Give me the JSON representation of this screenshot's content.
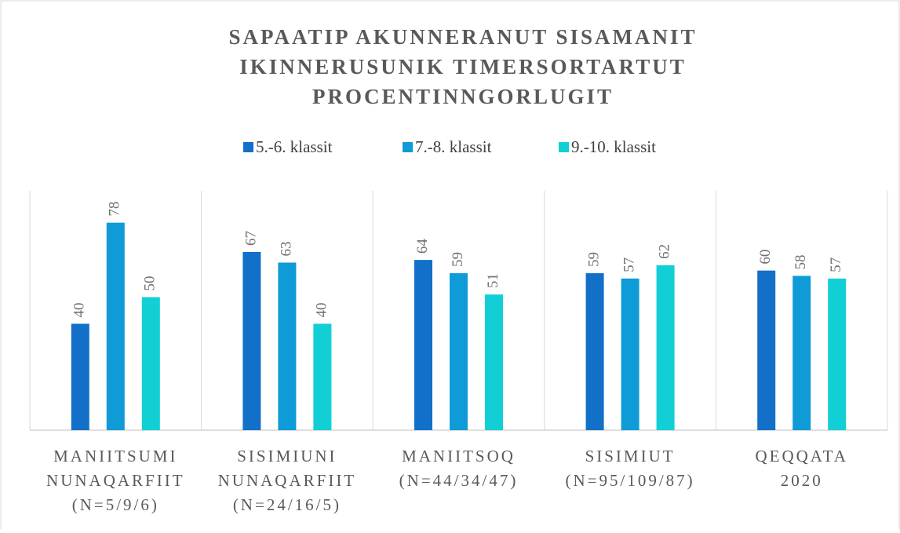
{
  "chart_data": {
    "type": "bar",
    "title": [
      "SAPAATIP AKUNNERANUT SISAMANIT",
      "IKINNERUSUNIK TIMERSORTARTUT",
      "PROCENTINNGORLUGIT"
    ],
    "categories": [
      [
        "MANIITSUMI",
        "NUNAQARFIIT",
        "(N=5/9/6)"
      ],
      [
        "SISIMIUNI",
        "NUNAQARFIIT",
        "(N=24/16/5)"
      ],
      [
        "MANIITSOQ",
        "(N=44/34/47)"
      ],
      [
        "SISIMIUT",
        "(N=95/109/87)"
      ],
      [
        "QEQQATA",
        "2020"
      ]
    ],
    "series": [
      {
        "name": "5.-6. klassit",
        "color": "#1270c9",
        "values": [
          40,
          67,
          64,
          59,
          60
        ]
      },
      {
        "name": "7.-8. klassit",
        "color": "#0f9bd7",
        "values": [
          78,
          63,
          59,
          57,
          58
        ]
      },
      {
        "name": "9.-10. klassit",
        "color": "#12cfd6",
        "values": [
          50,
          40,
          51,
          62,
          57
        ]
      }
    ],
    "ylim": [
      0,
      90
    ],
    "legend": "top"
  }
}
